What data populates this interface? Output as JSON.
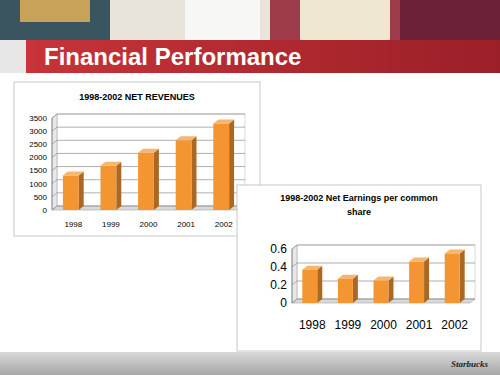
{
  "slide": {
    "title": "Financial Performance",
    "footer": "Starbucks"
  },
  "chart_data": [
    {
      "type": "bar",
      "title": "1998-2002 NET REVENUES",
      "categories": [
        "1998",
        "1999",
        "2000",
        "2001",
        "2002"
      ],
      "values": [
        1309,
        1680,
        2178,
        2649,
        3289
      ],
      "color": "#f39530",
      "ylim": [
        0,
        3500
      ],
      "yticks": [
        0,
        500,
        1000,
        1500,
        2000,
        2500,
        3000,
        3500
      ],
      "grid": true
    },
    {
      "type": "bar",
      "title": "1998-2002 Net Earnings per common share",
      "categories": [
        "1998",
        "1999",
        "2000",
        "2001",
        "2002"
      ],
      "values": [
        0.37,
        0.27,
        0.25,
        0.46,
        0.55
      ],
      "color": "#f39530",
      "ylim": [
        0,
        0.6
      ],
      "yticks": [
        0,
        0.2,
        0.4,
        0.6
      ],
      "grid": true
    }
  ]
}
